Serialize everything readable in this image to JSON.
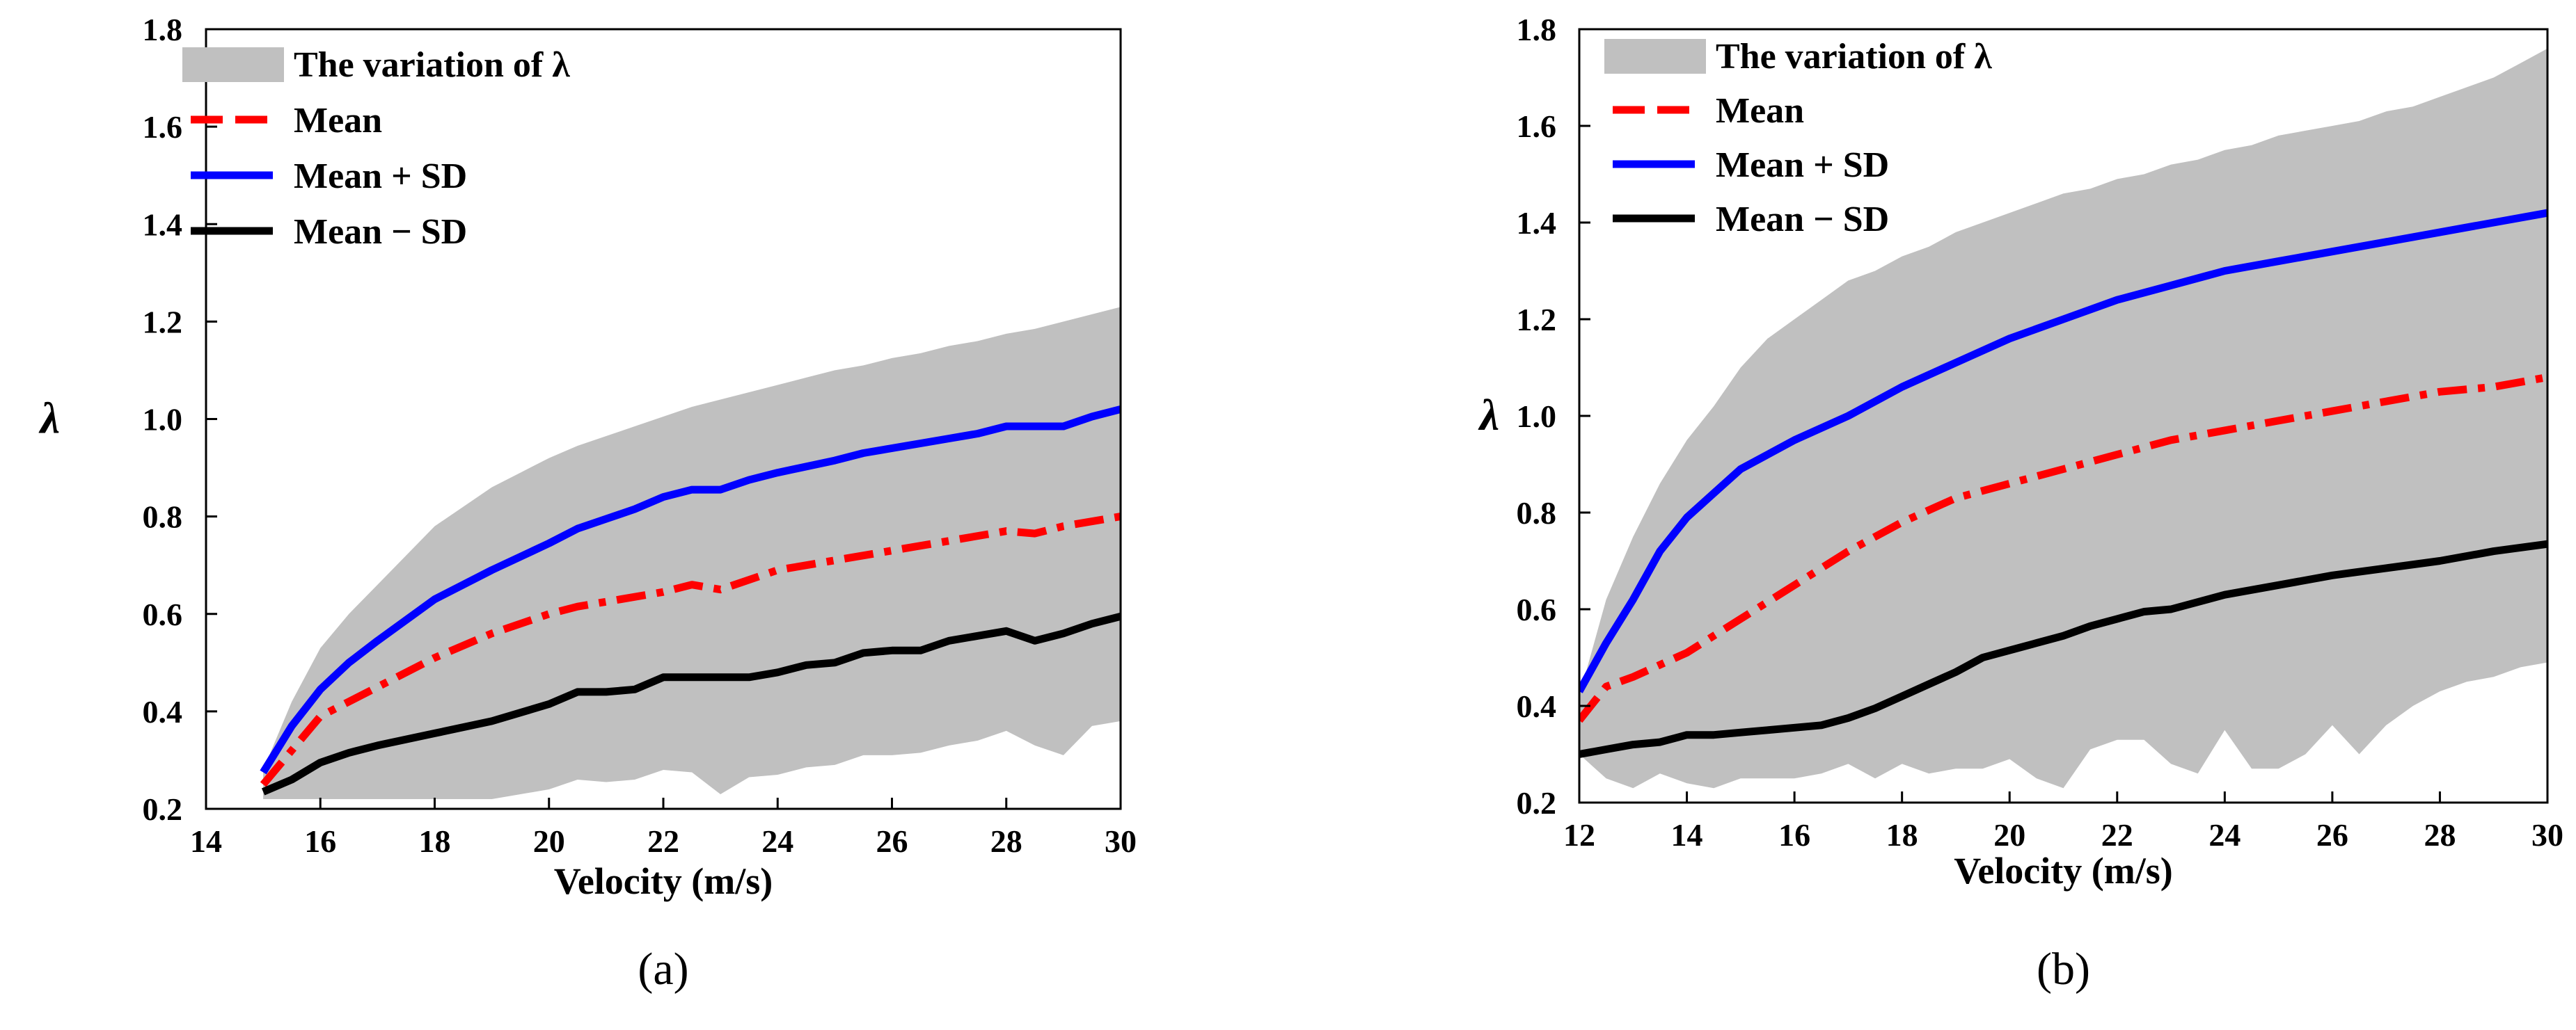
{
  "chart_data": [
    {
      "type": "line",
      "panel_label": "(a)",
      "xlabel": "Velocity (m/s)",
      "ylabel": "λ",
      "xlim": [
        14,
        30
      ],
      "ylim": [
        0.2,
        1.8
      ],
      "xticks": [
        14,
        16,
        18,
        20,
        22,
        24,
        26,
        28,
        30
      ],
      "xtick_labels": [
        "14",
        "16",
        "18",
        "20",
        "22",
        "24",
        "26",
        "28",
        "30"
      ],
      "yticks": [
        0.2,
        0.4,
        0.6,
        0.8,
        1.0,
        1.2,
        1.4,
        1.6,
        1.8
      ],
      "ytick_labels": [
        "0.2",
        "0.4",
        "0.6",
        "0.8",
        "1.0",
        "1.2",
        "1.4",
        "1.6",
        "1.8"
      ],
      "legend_position": "top-left",
      "band": {
        "name": "The variation of λ",
        "color": "#c0c0c0",
        "x": [
          15,
          15.5,
          16,
          16.5,
          17,
          17.5,
          18,
          18.5,
          19,
          19.5,
          20,
          20.5,
          21,
          21.5,
          22,
          22.5,
          23,
          23.5,
          24,
          24.5,
          25,
          25.5,
          26,
          26.5,
          27,
          27.5,
          28,
          28.5,
          29,
          29.5,
          30
        ],
        "upper": [
          0.28,
          0.42,
          0.53,
          0.6,
          0.66,
          0.72,
          0.78,
          0.82,
          0.86,
          0.89,
          0.92,
          0.945,
          0.965,
          0.985,
          1.005,
          1.025,
          1.04,
          1.055,
          1.07,
          1.085,
          1.1,
          1.11,
          1.125,
          1.135,
          1.15,
          1.16,
          1.175,
          1.185,
          1.2,
          1.215,
          1.23
        ],
        "lower": [
          0.22,
          0.22,
          0.22,
          0.22,
          0.22,
          0.22,
          0.22,
          0.22,
          0.22,
          0.23,
          0.24,
          0.26,
          0.255,
          0.26,
          0.28,
          0.275,
          0.23,
          0.265,
          0.27,
          0.285,
          0.29,
          0.31,
          0.31,
          0.315,
          0.33,
          0.34,
          0.36,
          0.33,
          0.31,
          0.37,
          0.38
        ]
      },
      "series": [
        {
          "name": "Mean",
          "color": "#ff0000",
          "dash": "dashdot",
          "x": [
            15,
            15.5,
            16,
            17,
            18,
            19,
            20,
            20.5,
            21,
            22,
            22.5,
            23,
            24,
            25,
            26,
            27,
            28,
            28.5,
            29,
            30
          ],
          "values": [
            0.25,
            0.32,
            0.39,
            0.45,
            0.51,
            0.56,
            0.6,
            0.615,
            0.625,
            0.645,
            0.66,
            0.65,
            0.69,
            0.71,
            0.73,
            0.75,
            0.77,
            0.765,
            0.78,
            0.8
          ]
        },
        {
          "name": "Mean + SD",
          "color": "#0000ff",
          "dash": "solid",
          "x": [
            15,
            15.5,
            16,
            16.5,
            17,
            18,
            19,
            20,
            20.5,
            21,
            21.5,
            22,
            22.5,
            23,
            23.5,
            24,
            25,
            25.5,
            26,
            26.5,
            27,
            27.5,
            28,
            28.5,
            29,
            29.5,
            30
          ],
          "values": [
            0.275,
            0.37,
            0.445,
            0.5,
            0.545,
            0.63,
            0.69,
            0.745,
            0.775,
            0.795,
            0.815,
            0.84,
            0.855,
            0.855,
            0.875,
            0.89,
            0.915,
            0.93,
            0.94,
            0.95,
            0.96,
            0.97,
            0.985,
            0.985,
            0.985,
            1.005,
            1.02
          ]
        },
        {
          "name": "Mean − SD",
          "color": "#000000",
          "dash": "solid",
          "x": [
            15,
            15.5,
            16,
            16.5,
            17,
            18,
            19,
            20,
            20.5,
            21,
            21.5,
            22,
            22.5,
            23,
            23.5,
            24,
            24.5,
            25,
            25.5,
            26,
            26.5,
            27,
            27.5,
            28,
            28.5,
            29,
            29.5,
            30
          ],
          "values": [
            0.235,
            0.26,
            0.295,
            0.315,
            0.33,
            0.355,
            0.38,
            0.415,
            0.44,
            0.44,
            0.445,
            0.47,
            0.47,
            0.47,
            0.47,
            0.48,
            0.495,
            0.5,
            0.52,
            0.525,
            0.525,
            0.545,
            0.555,
            0.565,
            0.545,
            0.56,
            0.58,
            0.595
          ]
        }
      ]
    },
    {
      "type": "line",
      "panel_label": "(b)",
      "xlabel": "Velocity (m/s)",
      "ylabel": "λ",
      "xlim": [
        12,
        30
      ],
      "ylim": [
        0.2,
        1.8
      ],
      "xticks": [
        12,
        14,
        16,
        18,
        20,
        22,
        24,
        26,
        28,
        30
      ],
      "xtick_labels": [
        "12",
        "14",
        "16",
        "18",
        "20",
        "22",
        "24",
        "26",
        "28",
        "30"
      ],
      "yticks": [
        0.2,
        0.4,
        0.6,
        0.8,
        1.0,
        1.2,
        1.4,
        1.6,
        1.8
      ],
      "ytick_labels": [
        "0.2",
        "0.4",
        "0.6",
        "0.8",
        "1.0",
        "1.2",
        "1.4",
        "1.6",
        "1.8"
      ],
      "legend_position": "top-left",
      "band": {
        "name": "The variation of λ",
        "color": "#c0c0c0",
        "x": [
          12,
          12.5,
          13,
          13.5,
          14,
          14.5,
          15,
          15.5,
          16,
          16.5,
          17,
          17.5,
          18,
          18.5,
          19,
          19.5,
          20,
          20.5,
          21,
          21.5,
          22,
          22.5,
          23,
          23.5,
          24,
          24.5,
          25,
          25.5,
          26,
          26.5,
          27,
          27.5,
          28,
          28.5,
          29,
          29.5,
          30
        ],
        "upper": [
          0.42,
          0.62,
          0.75,
          0.86,
          0.95,
          1.02,
          1.1,
          1.16,
          1.2,
          1.24,
          1.28,
          1.3,
          1.33,
          1.35,
          1.38,
          1.4,
          1.42,
          1.44,
          1.46,
          1.47,
          1.49,
          1.5,
          1.52,
          1.53,
          1.55,
          1.56,
          1.58,
          1.59,
          1.6,
          1.61,
          1.63,
          1.64,
          1.66,
          1.68,
          1.7,
          1.73,
          1.76
        ],
        "lower": [
          0.3,
          0.25,
          0.23,
          0.26,
          0.24,
          0.23,
          0.25,
          0.25,
          0.25,
          0.26,
          0.28,
          0.25,
          0.28,
          0.26,
          0.27,
          0.27,
          0.29,
          0.25,
          0.23,
          0.31,
          0.33,
          0.33,
          0.28,
          0.26,
          0.35,
          0.27,
          0.27,
          0.3,
          0.36,
          0.3,
          0.36,
          0.4,
          0.43,
          0.45,
          0.46,
          0.48,
          0.49
        ]
      },
      "series": [
        {
          "name": "Mean",
          "color": "#ff0000",
          "dash": "dashdot",
          "x": [
            12,
            12.5,
            13,
            14,
            15,
            16,
            17,
            18,
            19,
            20,
            21,
            22,
            23,
            24,
            25,
            26,
            27,
            28,
            29,
            30
          ],
          "values": [
            0.37,
            0.44,
            0.46,
            0.51,
            0.58,
            0.65,
            0.72,
            0.78,
            0.83,
            0.86,
            0.89,
            0.92,
            0.95,
            0.97,
            0.99,
            1.01,
            1.03,
            1.05,
            1.06,
            1.08
          ]
        },
        {
          "name": "Mean + SD",
          "color": "#0000ff",
          "dash": "solid",
          "x": [
            12,
            12.5,
            13,
            13.5,
            14,
            14.5,
            15,
            16,
            17,
            18,
            19,
            20,
            21,
            22,
            23,
            24,
            25,
            26,
            27,
            28,
            29,
            30
          ],
          "values": [
            0.43,
            0.53,
            0.62,
            0.72,
            0.79,
            0.84,
            0.89,
            0.95,
            1.0,
            1.06,
            1.11,
            1.16,
            1.2,
            1.24,
            1.27,
            1.3,
            1.32,
            1.34,
            1.36,
            1.38,
            1.4,
            1.42
          ]
        },
        {
          "name": "Mean −  SD",
          "color": "#000000",
          "dash": "solid",
          "x": [
            12,
            12.5,
            13,
            13.5,
            14,
            14.5,
            15,
            15.5,
            16,
            16.5,
            17,
            17.5,
            18,
            18.5,
            19,
            19.5,
            20,
            20.5,
            21,
            21.5,
            22,
            22.5,
            23,
            24,
            25,
            26,
            27,
            28,
            29,
            30
          ],
          "values": [
            0.3,
            0.31,
            0.32,
            0.325,
            0.34,
            0.34,
            0.345,
            0.35,
            0.355,
            0.36,
            0.375,
            0.395,
            0.42,
            0.445,
            0.47,
            0.5,
            0.515,
            0.53,
            0.545,
            0.565,
            0.58,
            0.595,
            0.6,
            0.63,
            0.65,
            0.67,
            0.685,
            0.7,
            0.72,
            0.735
          ]
        }
      ]
    }
  ]
}
